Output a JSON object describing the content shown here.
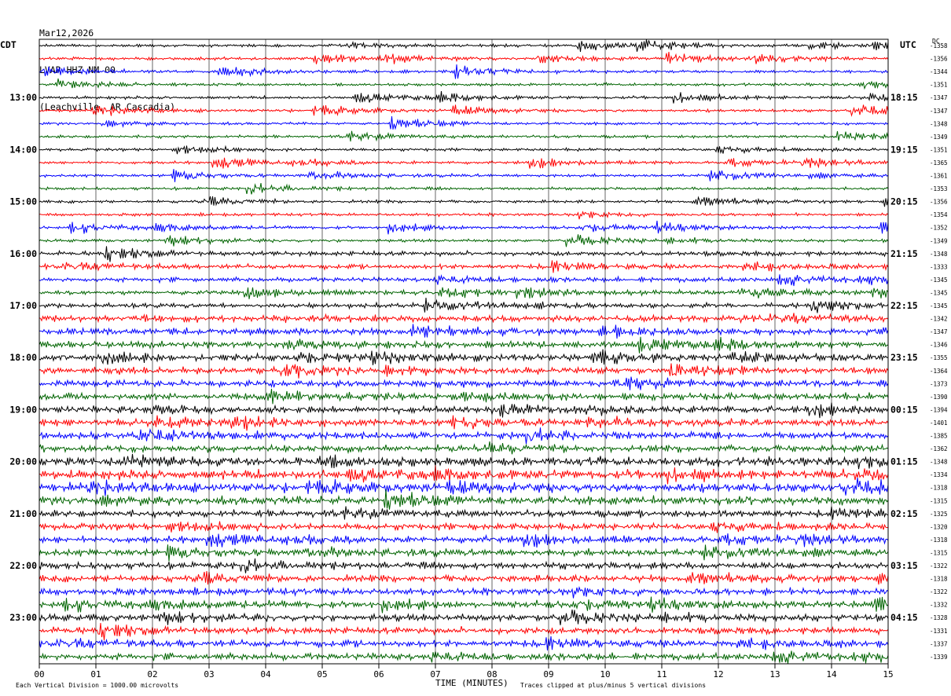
{
  "header": {
    "date": "Mar12,2026",
    "station": "LVAR HHZ NM 00",
    "location": "(Leachville, AR Cascadia)"
  },
  "left_tz": "CDT",
  "right_tz": "UTC",
  "dc_label": "DC",
  "chart_data": {
    "type": "line",
    "title": "",
    "xlabel": "TIME (MINUTES)",
    "ylabel": "",
    "xlim": [
      0,
      15
    ],
    "x_ticks": [
      "00",
      "01",
      "02",
      "03",
      "04",
      "05",
      "06",
      "07",
      "08",
      "09",
      "10",
      "11",
      "12",
      "13",
      "14",
      "15"
    ],
    "hour_labels_left": [
      "13:00",
      "14:00",
      "15:00",
      "16:00",
      "17:00",
      "18:00",
      "19:00",
      "20:00",
      "21:00",
      "22:00",
      "23:00"
    ],
    "hour_labels_right": [
      "18:15",
      "19:15",
      "20:15",
      "21:15",
      "22:15",
      "23:15",
      "00:15",
      "01:15",
      "02:15",
      "03:15",
      "04:15"
    ],
    "trace_colors": [
      "#000000",
      "#ff0000",
      "#0000ff",
      "#006400"
    ],
    "trace_count": 48,
    "minutes_per_trace": 15,
    "dc_offsets": [
      -1358,
      -1356,
      -1344,
      -1351,
      -1347,
      -1347,
      -1348,
      -1349,
      -1351,
      -1365,
      -1361,
      -1353,
      -1356,
      -1354,
      -1352,
      -1349,
      -1348,
      -1333,
      -1345,
      -1345,
      -1345,
      -1342,
      -1347,
      -1346,
      -1355,
      -1364,
      -1373,
      -1390,
      -1394,
      -1401,
      -1385,
      -1362,
      -1348,
      -1334,
      -1318,
      -1315,
      -1325,
      -1320,
      -1318,
      -1315,
      -1322,
      -1318,
      -1322,
      -1332,
      -1328,
      -1331,
      -1337,
      -1339
    ],
    "trace_amplitude_levels": [
      1,
      1,
      1,
      1,
      1,
      1,
      1,
      1,
      1,
      1,
      1,
      1,
      1,
      1,
      1,
      1,
      2,
      2,
      2,
      2,
      2,
      3,
      3,
      3,
      3,
      3,
      3,
      3,
      3,
      3,
      3,
      3,
      4,
      4,
      4,
      4,
      3,
      3,
      3,
      3,
      3,
      3,
      3,
      3,
      3,
      3,
      3,
      3
    ],
    "grid": true
  },
  "footer": {
    "scale_note": "Each Vertical Division = 1000.00 microvolts",
    "xlabel": "TIME (MINUTES)",
    "clip_note": "Traces clipped at plus/minus 5 vertical divisions"
  }
}
